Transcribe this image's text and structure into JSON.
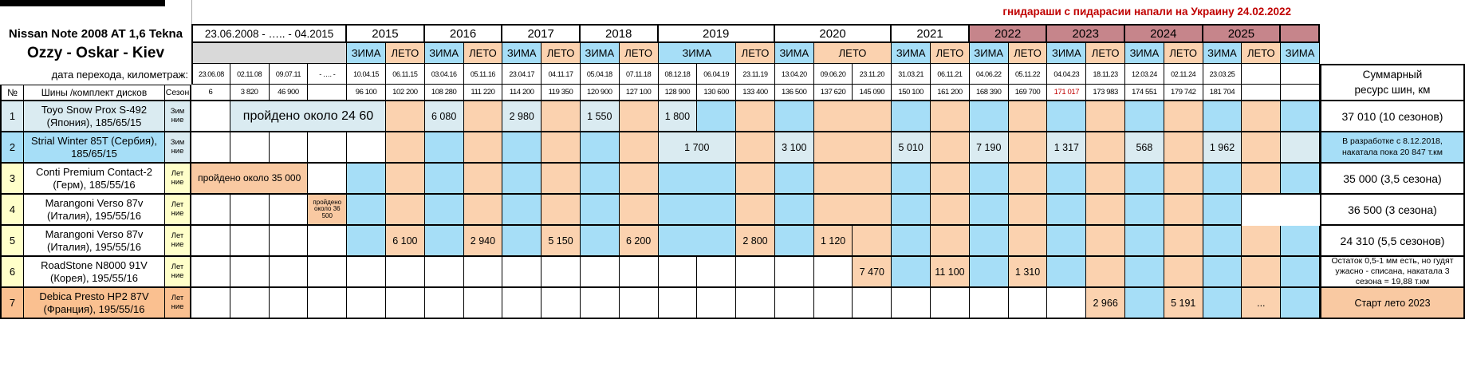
{
  "banner": {
    "text": "гнидараши с пидарасии напали на Украину 24.02.2022"
  },
  "car": {
    "title": "Nissan Note 2008 AT 1,6 Tekna",
    "subtitle": "Ozzy - Oskar - Kiev",
    "transition_label": "дата перехода, километраж:"
  },
  "columns_header": {
    "num": "№",
    "name": "Шины /комплект дисков",
    "season": "Сезон"
  },
  "summary_header": {
    "line1": "Суммарный",
    "line2": "ресурс шин, км"
  },
  "years": [
    [
      4,
      "w",
      "23.06.2008 - ….. - 04.2015"
    ],
    [
      2,
      "w",
      "2015"
    ],
    [
      2,
      "w",
      "2016"
    ],
    [
      2,
      "w",
      "2017"
    ],
    [
      2,
      "w",
      "2018"
    ],
    [
      3,
      "w",
      "2019"
    ],
    [
      3,
      "w",
      "2020"
    ],
    [
      2,
      "w",
      "2021"
    ],
    [
      2,
      "r",
      "2022"
    ],
    [
      2,
      "r",
      "2023"
    ],
    [
      2,
      "r",
      "2024"
    ],
    [
      2,
      "r",
      "2025"
    ],
    [
      1,
      "r",
      ""
    ]
  ],
  "seasons": [
    [
      4,
      "g",
      ""
    ],
    [
      1,
      "b",
      "ЗИМА"
    ],
    [
      1,
      "p",
      "ЛЕТО"
    ],
    [
      1,
      "b",
      "ЗИМА"
    ],
    [
      1,
      "p",
      "ЛЕТО"
    ],
    [
      1,
      "b",
      "ЗИМА"
    ],
    [
      1,
      "p",
      "ЛЕТО"
    ],
    [
      1,
      "b",
      "ЗИМА"
    ],
    [
      1,
      "p",
      "ЛЕТО"
    ],
    [
      2,
      "b",
      "ЗИМА"
    ],
    [
      1,
      "p",
      "ЛЕТО"
    ],
    [
      1,
      "b",
      "ЗИМА"
    ],
    [
      2,
      "p",
      "ЛЕТО"
    ],
    [
      1,
      "b",
      "ЗИМА"
    ],
    [
      1,
      "p",
      "ЛЕТО"
    ],
    [
      1,
      "b",
      "ЗИМА"
    ],
    [
      1,
      "p",
      "ЛЕТО"
    ],
    [
      1,
      "b",
      "ЗИМА"
    ],
    [
      1,
      "p",
      "ЛЕТО"
    ],
    [
      1,
      "b",
      "ЗИМА"
    ],
    [
      1,
      "p",
      "ЛЕТО"
    ],
    [
      1,
      "b",
      "ЗИМА"
    ],
    [
      1,
      "p",
      "ЛЕТО"
    ],
    [
      1,
      "b",
      "ЗИМА"
    ]
  ],
  "dates": [
    "23.06.08",
    "02.11.08",
    "09.07.11",
    "- …. -",
    "10.04.15",
    "06.11.15",
    "03.04.16",
    "05.11.16",
    "23.04.17",
    "04.11.17",
    "05.04.18",
    "07.11.18",
    "08.12.18",
    "06.04.19",
    "23.11.19",
    "13.04.20",
    "09.06.20",
    "23.11.20",
    "31.03.21",
    "06.11.21",
    "04.06.22",
    "05.11.22",
    "04.04.23",
    "18.11.23",
    "12.03.24",
    "02.11.24",
    "23.03.25",
    "",
    ""
  ],
  "km": [
    "6",
    "3 820",
    "46 900",
    "",
    "96 100",
    "102 200",
    "108 280",
    "111 220",
    "114 200",
    "119 350",
    "120 900",
    "127 100",
    "128 900",
    "130 600",
    "133 400",
    "136 500",
    "137 620",
    "145 090",
    "150 100",
    "161 200",
    "168 390",
    "169 700",
    "171 017",
    "173 983",
    "174 551",
    "179 742",
    "181 704",
    "",
    ""
  ],
  "km_red_index": 22,
  "tires": [
    {
      "num": "1",
      "name": "Toyo Snow Prox S-492 (Япония), 185/65/15",
      "season": [
        "Зим",
        "ние"
      ],
      "head": [
        "l",
        "l",
        "l"
      ],
      "cells": [
        [
          1,
          "w"
        ],
        [
          4,
          "l",
          "пройдено около 24 60",
          "clip"
        ],
        [
          1,
          "p"
        ],
        [
          1,
          "l",
          "6 080"
        ],
        [
          1,
          "p"
        ],
        [
          1,
          "l",
          "2 980"
        ],
        [
          1,
          "p"
        ],
        [
          1,
          "l",
          "1 550"
        ],
        [
          1,
          "p"
        ],
        [
          1,
          "l",
          "1 800"
        ],
        [
          1,
          "b"
        ],
        [
          1,
          "p"
        ],
        [
          1,
          "b"
        ],
        [
          2,
          "p"
        ],
        [
          1,
          "b"
        ],
        [
          1,
          "p"
        ],
        [
          1,
          "b"
        ],
        [
          1,
          "p"
        ],
        [
          1,
          "b"
        ],
        [
          1,
          "p"
        ],
        [
          1,
          "b"
        ],
        [
          1,
          "p"
        ],
        [
          1,
          "b"
        ],
        [
          1,
          "p"
        ],
        [
          1,
          "b"
        ]
      ],
      "summary": {
        "text": "37 010 (10 сезонов)",
        "bg": "w",
        "size": "big"
      }
    },
    {
      "num": "2",
      "name": "Strial Winter 85T (Сербия), 185/65/15",
      "season": [
        "Зим",
        "ние"
      ],
      "head": [
        "b",
        "b",
        "l"
      ],
      "cells": [
        [
          1,
          "w"
        ],
        [
          1,
          "w"
        ],
        [
          1,
          "w"
        ],
        [
          1,
          "w"
        ],
        [
          1,
          "w"
        ],
        [
          1,
          "p"
        ],
        [
          1,
          "b"
        ],
        [
          1,
          "p"
        ],
        [
          1,
          "b"
        ],
        [
          1,
          "p"
        ],
        [
          1,
          "b"
        ],
        [
          1,
          "p"
        ],
        [
          2,
          "l",
          "1 700"
        ],
        [
          1,
          "p"
        ],
        [
          1,
          "l",
          "3 100"
        ],
        [
          2,
          "p"
        ],
        [
          1,
          "l",
          "5 010"
        ],
        [
          1,
          "p"
        ],
        [
          1,
          "l",
          "7 190"
        ],
        [
          1,
          "p"
        ],
        [
          1,
          "l",
          "1 317"
        ],
        [
          1,
          "p"
        ],
        [
          1,
          "l",
          "568"
        ],
        [
          1,
          "p"
        ],
        [
          1,
          "l",
          "1 962"
        ],
        [
          1,
          "p"
        ],
        [
          1,
          "l"
        ]
      ],
      "summary": {
        "text": "В разработке с 8.12.2018, накатала пока 20 847 т.км",
        "bg": "b",
        "size": "small"
      }
    },
    {
      "num": "3",
      "name": "Conti Premium Contact-2 (Герм), 185/55/16",
      "season": [
        "Лет",
        "ние"
      ],
      "head": [
        "y",
        "w",
        "y"
      ],
      "cells": [
        [
          3,
          "n",
          "пройдено около 35 000",
          "note2"
        ],
        [
          1,
          "w"
        ],
        [
          1,
          "b"
        ],
        [
          1,
          "p"
        ],
        [
          1,
          "b"
        ],
        [
          1,
          "p"
        ],
        [
          1,
          "b"
        ],
        [
          1,
          "p"
        ],
        [
          1,
          "b"
        ],
        [
          1,
          "p"
        ],
        [
          2,
          "b"
        ],
        [
          1,
          "p"
        ],
        [
          1,
          "b"
        ],
        [
          2,
          "p"
        ],
        [
          1,
          "b"
        ],
        [
          1,
          "p"
        ],
        [
          1,
          "b"
        ],
        [
          1,
          "p"
        ],
        [
          1,
          "b"
        ],
        [
          1,
          "p"
        ],
        [
          1,
          "b"
        ],
        [
          1,
          "p"
        ],
        [
          1,
          "b"
        ],
        [
          1,
          "p"
        ],
        [
          1,
          "b"
        ]
      ],
      "summary": {
        "text": "35 000 (3,5 сезона)",
        "bg": "w",
        "size": "big"
      }
    },
    {
      "num": "4",
      "name": "Marangoni Verso 87v (Италия), 195/55/16",
      "season": [
        "Лет",
        "ние"
      ],
      "head": [
        "y",
        "w",
        "y"
      ],
      "cells": [
        [
          1,
          "w"
        ],
        [
          1,
          "w"
        ],
        [
          1,
          "w"
        ],
        [
          1,
          "n",
          "пройдено около 36 500",
          "tiny"
        ],
        [
          1,
          "b"
        ],
        [
          1,
          "p"
        ],
        [
          1,
          "b"
        ],
        [
          1,
          "p"
        ],
        [
          1,
          "b"
        ],
        [
          1,
          "p"
        ],
        [
          1,
          "b"
        ],
        [
          1,
          "p"
        ],
        [
          2,
          "b"
        ],
        [
          1,
          "p"
        ],
        [
          1,
          "b"
        ],
        [
          2,
          "p"
        ],
        [
          1,
          "b"
        ],
        [
          1,
          "p"
        ],
        [
          1,
          "b"
        ],
        [
          1,
          "p"
        ],
        [
          1,
          "b"
        ],
        [
          1,
          "p"
        ],
        [
          1,
          "b"
        ],
        [
          1,
          "p"
        ],
        [
          1,
          "b"
        ]
      ],
      "summary": {
        "text": "36 500 (3 сезона)",
        "bg": "w",
        "size": "big"
      }
    },
    {
      "num": "5",
      "name": "Marangoni Verso 87v (Италия), 195/55/16",
      "season": [
        "Лет",
        "ние"
      ],
      "head": [
        "y",
        "w",
        "y"
      ],
      "cells": [
        [
          1,
          "w"
        ],
        [
          1,
          "w"
        ],
        [
          1,
          "w"
        ],
        [
          1,
          "w"
        ],
        [
          1,
          "b"
        ],
        [
          1,
          "p",
          "6 100"
        ],
        [
          1,
          "b"
        ],
        [
          1,
          "p",
          "2 940"
        ],
        [
          1,
          "b"
        ],
        [
          1,
          "p",
          "5 150"
        ],
        [
          1,
          "b"
        ],
        [
          1,
          "p",
          "6 200"
        ],
        [
          2,
          "b"
        ],
        [
          1,
          "p",
          "2 800"
        ],
        [
          1,
          "b"
        ],
        [
          1,
          "p",
          "1 120"
        ],
        [
          1,
          "p"
        ],
        [
          1,
          "b"
        ],
        [
          1,
          "p"
        ],
        [
          1,
          "b"
        ],
        [
          1,
          "p"
        ],
        [
          1,
          "b"
        ],
        [
          1,
          "p"
        ],
        [
          1,
          "b"
        ],
        [
          1,
          "p"
        ],
        [
          1,
          "b"
        ],
        [
          1,
          "p"
        ],
        [
          1,
          "b"
        ]
      ],
      "summary": {
        "text": "24 310 (5,5 сезонов)",
        "bg": "w",
        "size": "big"
      }
    },
    {
      "num": "6",
      "name": "RoadStone N8000 91V (Корея), 195/55/16",
      "season": [
        "Лет",
        "ние"
      ],
      "head": [
        "y",
        "w",
        "y"
      ],
      "cells": [
        [
          1,
          "w"
        ],
        [
          1,
          "w"
        ],
        [
          1,
          "w"
        ],
        [
          1,
          "w"
        ],
        [
          1,
          "w"
        ],
        [
          1,
          "w"
        ],
        [
          1,
          "w"
        ],
        [
          1,
          "w"
        ],
        [
          1,
          "w"
        ],
        [
          1,
          "w"
        ],
        [
          1,
          "w"
        ],
        [
          1,
          "w"
        ],
        [
          1,
          "w"
        ],
        [
          1,
          "w"
        ],
        [
          1,
          "w"
        ],
        [
          1,
          "w"
        ],
        [
          1,
          "w"
        ],
        [
          1,
          "p",
          "7 470"
        ],
        [
          1,
          "b"
        ],
        [
          1,
          "p",
          "11 100"
        ],
        [
          1,
          "b"
        ],
        [
          1,
          "p",
          "1 310"
        ],
        [
          1,
          "b"
        ],
        [
          1,
          "p"
        ],
        [
          1,
          "b"
        ],
        [
          1,
          "p"
        ],
        [
          1,
          "b"
        ],
        [
          1,
          "p"
        ],
        [
          1,
          "b"
        ]
      ],
      "summary": {
        "text": "Остаток 0,5-1 мм есть, но гудят ужасно - списана, накатала 3 сезона = 19,88 т.км",
        "bg": "w",
        "size": "small"
      }
    },
    {
      "num": "7",
      "name": "Debica Presto HP2 87V (Франция), 195/55/16",
      "season": [
        "Лет",
        "ние"
      ],
      "head": [
        "o",
        "o",
        "o"
      ],
      "cells": [
        [
          1,
          "w"
        ],
        [
          1,
          "w"
        ],
        [
          1,
          "w"
        ],
        [
          1,
          "w"
        ],
        [
          1,
          "w"
        ],
        [
          1,
          "w"
        ],
        [
          1,
          "w"
        ],
        [
          1,
          "w"
        ],
        [
          1,
          "w"
        ],
        [
          1,
          "w"
        ],
        [
          1,
          "w"
        ],
        [
          1,
          "w"
        ],
        [
          1,
          "w"
        ],
        [
          1,
          "w"
        ],
        [
          1,
          "w"
        ],
        [
          1,
          "w"
        ],
        [
          1,
          "w"
        ],
        [
          1,
          "w"
        ],
        [
          1,
          "w"
        ],
        [
          1,
          "w"
        ],
        [
          1,
          "w"
        ],
        [
          1,
          "w"
        ],
        [
          1,
          "w"
        ],
        [
          1,
          "p",
          "2 966"
        ],
        [
          1,
          "b"
        ],
        [
          1,
          "p",
          "5 191"
        ],
        [
          1,
          "b"
        ],
        [
          1,
          "p",
          "..."
        ],
        [
          1,
          "b"
        ]
      ],
      "summary": {
        "text": "Старт лето 2023",
        "bg": "n",
        "size": "mid"
      }
    }
  ],
  "colors": {
    "winter": "#A6DEF7",
    "summer": "#FBD2AF",
    "pale": "#DAEBF1",
    "note": "#F9C9A2",
    "orange": "#FAC090",
    "yellow": "#FFFFC9",
    "rose": "#C6858B",
    "gray": "#D9D9D9",
    "red": "#C00000"
  }
}
